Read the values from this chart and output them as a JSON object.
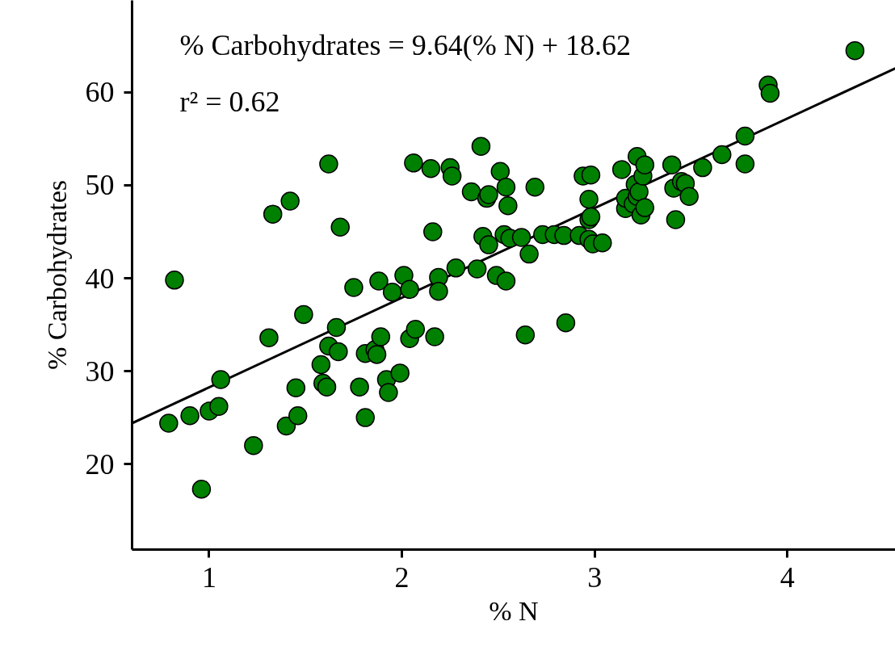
{
  "chart_data": {
    "type": "scatter",
    "xlabel": "% N",
    "ylabel": "% Carbohydrates",
    "annotations": [
      "% Carbohydrates = 9.64(% N) + 18.62",
      "r² = 0.62"
    ],
    "xlim": [
      0.6,
      4.56
    ],
    "ylim": [
      10.8,
      69.9
    ],
    "xticks": [
      1,
      2,
      3,
      4
    ],
    "yticks": [
      20,
      30,
      40,
      50,
      60
    ],
    "grid": false,
    "series": [
      {
        "marker": "circle",
        "color": "#008000",
        "x": [
          0.79,
          0.9,
          1.0,
          1.05,
          0.96,
          1.06,
          0.82,
          1.23,
          1.31,
          1.33,
          1.4,
          1.42,
          1.45,
          1.46,
          1.49,
          1.58,
          1.59,
          1.61,
          1.62,
          1.62,
          1.66,
          1.67,
          1.68,
          1.75,
          1.78,
          1.81,
          1.81,
          1.86,
          1.87,
          1.88,
          1.89,
          1.92,
          1.93,
          1.95,
          1.99,
          2.01,
          2.04,
          2.04,
          2.06,
          2.07,
          2.15,
          2.16,
          2.17,
          2.19,
          2.19,
          2.25,
          2.26,
          2.28,
          2.36,
          2.39,
          2.41,
          2.42,
          2.44,
          2.45,
          2.45,
          2.49,
          2.51,
          2.53,
          2.54,
          2.55,
          2.54,
          2.56,
          2.62,
          2.64,
          2.66,
          2.69,
          2.73,
          2.79,
          2.84,
          2.85,
          2.92,
          2.94,
          2.97,
          2.97,
          2.98,
          2.97,
          2.98,
          2.99,
          3.04,
          3.14,
          3.16,
          3.16,
          3.2,
          3.21,
          3.22,
          3.22,
          3.23,
          3.24,
          3.25,
          3.26,
          3.26,
          3.4,
          3.41,
          3.42,
          3.45,
          3.47,
          3.49,
          3.56,
          3.66,
          3.78,
          3.78,
          3.9,
          3.91,
          4.35
        ],
        "values": [
          24.4,
          25.2,
          25.7,
          26.2,
          17.3,
          29.1,
          39.8,
          22.0,
          33.6,
          46.9,
          24.1,
          48.3,
          28.2,
          25.2,
          36.1,
          30.7,
          28.7,
          28.3,
          32.7,
          52.3,
          34.7,
          32.1,
          45.5,
          39.0,
          28.3,
          25.0,
          31.9,
          32.3,
          31.8,
          39.7,
          33.7,
          29.1,
          27.7,
          38.5,
          29.8,
          40.3,
          33.5,
          38.8,
          52.4,
          34.5,
          51.8,
          45.0,
          33.7,
          40.1,
          38.6,
          51.9,
          51.0,
          41.1,
          49.3,
          41.0,
          54.2,
          44.5,
          48.6,
          49.0,
          43.6,
          40.3,
          51.5,
          44.7,
          49.8,
          47.8,
          39.7,
          44.3,
          44.4,
          33.9,
          42.6,
          49.8,
          44.7,
          44.7,
          44.6,
          35.2,
          44.6,
          51.0,
          44.2,
          46.3,
          51.1,
          48.5,
          46.6,
          43.7,
          43.8,
          51.7,
          47.5,
          48.6,
          48.0,
          50.1,
          53.1,
          48.8,
          49.3,
          46.8,
          51.0,
          52.2,
          47.6,
          52.2,
          49.7,
          46.3,
          50.4,
          50.2,
          48.8,
          51.9,
          53.3,
          52.3,
          55.3,
          60.8,
          59.9,
          64.5
        ]
      },
      {
        "type": "line",
        "color": "#000000",
        "x": [
          0.6,
          4.56
        ],
        "values": [
          24.4,
          62.6
        ]
      }
    ]
  }
}
